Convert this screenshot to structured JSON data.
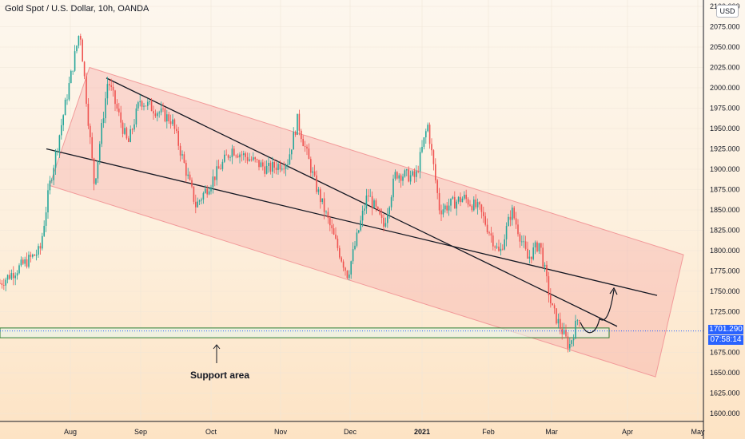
{
  "header": {
    "title": "Gold Spot / U.S. Dollar, 10h, OANDA"
  },
  "price_scale": {
    "currency": "USD",
    "last_price": "1701.290",
    "countdown": "07:58:14",
    "ticks": [
      "2100.000",
      "2075.000",
      "2050.000",
      "2025.000",
      "2000.000",
      "1975.000",
      "1950.000",
      "1925.000",
      "1900.000",
      "1875.000",
      "1850.000",
      "1825.000",
      "1800.000",
      "1775.000",
      "1750.000",
      "1725.000",
      "1700.000",
      "1675.000",
      "1650.000",
      "1625.000",
      "1600.000"
    ]
  },
  "time_axis": {
    "labels": [
      "Aug",
      "Sep",
      "Oct",
      "Nov",
      "Dec",
      "2021",
      "Feb",
      "Mar",
      "Apr",
      "May"
    ]
  },
  "annotation": {
    "text": "Support area"
  },
  "colors": {
    "up": "#26a69a",
    "down": "#ef5350",
    "channel": "#f4a1a1",
    "support": "#2e7d32",
    "price_tag": "#2962ff"
  },
  "chart_data": {
    "type": "candlestick",
    "title": "Gold Spot / U.S. Dollar, 10h, OANDA",
    "ylim": [
      1600,
      2100
    ],
    "x_labels": [
      "Aug",
      "Sep",
      "Oct",
      "Nov",
      "Dec",
      "2021",
      "Feb",
      "Mar",
      "Apr",
      "May"
    ],
    "last_price": 1701.29,
    "support_zone": [
      1693,
      1705
    ],
    "channel_upper": {
      "start": [
        "Jul 31",
        2025
      ],
      "end": [
        "Apr 20",
        1795
      ]
    },
    "channel_lower": {
      "start": [
        "Jul 31",
        1880
      ],
      "end": [
        "Apr 20",
        1645
      ]
    },
    "trendline_1": {
      "start": [
        "Jul 25",
        1925
      ],
      "end": [
        "Apr 20",
        1745
      ]
    },
    "trendline_2": {
      "start": [
        "Aug 10",
        2010
      ],
      "end": [
        "Apr 20",
        1707
      ]
    },
    "keypoints": [
      {
        "x": 0,
        "y": 1760
      },
      {
        "x": 50,
        "y": 1800
      },
      {
        "x": 62,
        "y": 1880
      },
      {
        "x": 100,
        "y": 2072
      },
      {
        "x": 118,
        "y": 1880
      },
      {
        "x": 135,
        "y": 2010
      },
      {
        "x": 160,
        "y": 1930
      },
      {
        "x": 175,
        "y": 1985
      },
      {
        "x": 215,
        "y": 1960
      },
      {
        "x": 245,
        "y": 1855
      },
      {
        "x": 290,
        "y": 1925
      },
      {
        "x": 335,
        "y": 1900
      },
      {
        "x": 360,
        "y": 1910
      },
      {
        "x": 372,
        "y": 1960
      },
      {
        "x": 395,
        "y": 1880
      },
      {
        "x": 420,
        "y": 1810
      },
      {
        "x": 435,
        "y": 1770
      },
      {
        "x": 460,
        "y": 1870
      },
      {
        "x": 480,
        "y": 1830
      },
      {
        "x": 495,
        "y": 1895
      },
      {
        "x": 520,
        "y": 1890
      },
      {
        "x": 535,
        "y": 1955
      },
      {
        "x": 550,
        "y": 1850
      },
      {
        "x": 580,
        "y": 1865
      },
      {
        "x": 600,
        "y": 1850
      },
      {
        "x": 625,
        "y": 1795
      },
      {
        "x": 640,
        "y": 1850
      },
      {
        "x": 660,
        "y": 1790
      },
      {
        "x": 675,
        "y": 1810
      },
      {
        "x": 690,
        "y": 1730
      },
      {
        "x": 712,
        "y": 1682
      },
      {
        "x": 724,
        "y": 1720
      }
    ]
  }
}
